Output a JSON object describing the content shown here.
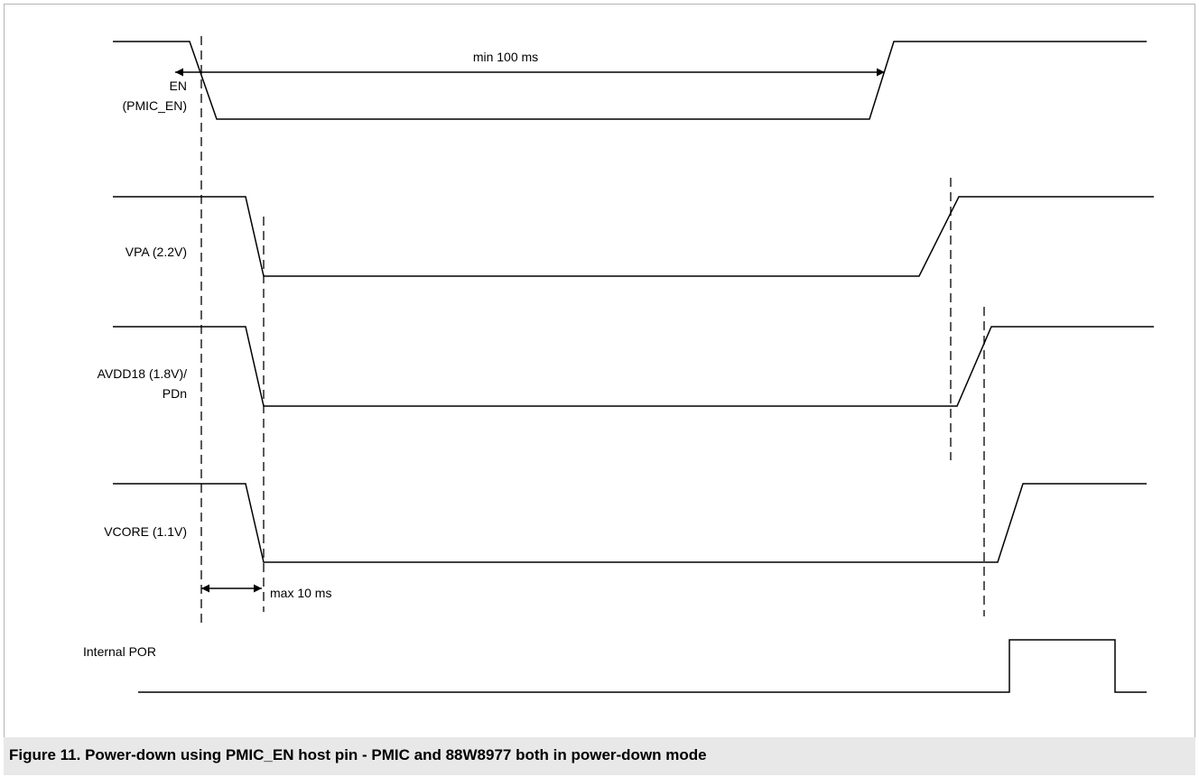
{
  "signals": {
    "en_line1": "EN",
    "en_line2": "(PMIC_EN)",
    "vpa": "VPA (2.2V)",
    "avdd_line1": "AVDD18 (1.8V)/",
    "avdd_line2": "PDn",
    "vcore": "VCORE (1.1V)",
    "por": "Internal POR"
  },
  "annotations": {
    "min_delay": "min 100 ms",
    "max_delay": "max 10 ms"
  },
  "caption": "Figure 11.  Power-down using PMIC_EN host pin - PMIC and 88W8977 both in power-down mode",
  "colors": {
    "line": "#000000",
    "frame_border": "#b5b5b5",
    "caption_background": "#e8e8e8"
  }
}
